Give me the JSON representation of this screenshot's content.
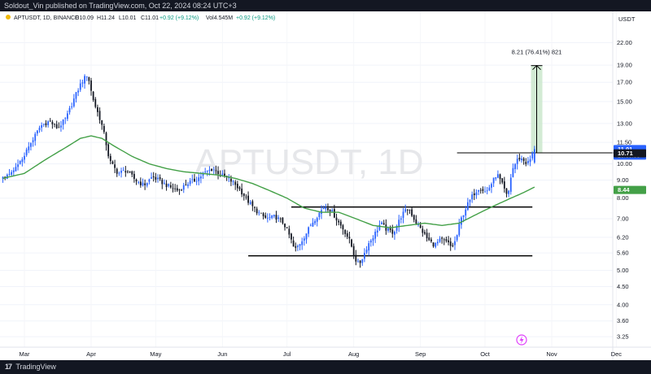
{
  "header": {
    "publisher": "Soldout_Vin published on TradingView.com, Oct 22, 2024 08:24 UTC+3"
  },
  "footer": {
    "brand": "TradingView"
  },
  "legend": {
    "symbol": "APTUSDT, 1D, BINANCE",
    "open": "O10.09",
    "high": "H11.24",
    "low": "L10.01",
    "close": "C11.01",
    "change": "+0.92 (+9.12%)",
    "volume": "Vol4.545M",
    "vol_change": "+0.92 (+9.12%)"
  },
  "watermark": "APTUSDT, 1D",
  "currency": "USDT",
  "measure_label": "8.21 (76.41%) 821",
  "colors": {
    "up": "#2962ff",
    "down": "#131722",
    "ma": "#43a047",
    "price_tag": "#2962ff",
    "dark_tag": "#131722",
    "ma_tag": "#43a047",
    "measure_fill": "#c8e6c9"
  },
  "chart_data": {
    "type": "candlestick",
    "title": "APTUSDT, 1D, BINANCE",
    "scale": "log",
    "ylim": [
      3.1,
      24
    ],
    "y_ticks": [
      22.0,
      19.0,
      17.0,
      15.0,
      13.0,
      11.5,
      10.0,
      9.0,
      8.0,
      7.0,
      6.2,
      5.6,
      5.0,
      4.5,
      4.0,
      3.6,
      3.25
    ],
    "y_tick_labels": [
      "22.00",
      "19.00",
      "17.00",
      "15.00",
      "13.00",
      "11.50",
      "10.00",
      "9.00",
      "8.00",
      "7.00",
      "6.20",
      "5.60",
      "5.00",
      "4.50",
      "4.00",
      "3.60",
      "3.25"
    ],
    "x_ticks": [
      {
        "label": "Mar",
        "day": 0
      },
      {
        "label": "Apr",
        "day": 31
      },
      {
        "label": "May",
        "day": 61
      },
      {
        "label": "Jun",
        "day": 92
      },
      {
        "label": "Jul",
        "day": 122
      },
      {
        "label": "Aug",
        "day": 153
      },
      {
        "label": "Sep",
        "day": 184
      },
      {
        "label": "Oct",
        "day": 214
      },
      {
        "label": "Nov",
        "day": 245
      },
      {
        "label": "Dec",
        "day": 275
      }
    ],
    "price_path": [
      [
        -10,
        9.1
      ],
      [
        -6,
        9.3
      ],
      [
        -3,
        9.8
      ],
      [
        0,
        10.5
      ],
      [
        4,
        11.6
      ],
      [
        8,
        12.8
      ],
      [
        12,
        13.2
      ],
      [
        16,
        12.6
      ],
      [
        20,
        13.5
      ],
      [
        24,
        15.5
      ],
      [
        27,
        17.0
      ],
      [
        30,
        18.0
      ],
      [
        31,
        16.5
      ],
      [
        33,
        14.8
      ],
      [
        36,
        13.2
      ],
      [
        38,
        11.8
      ],
      [
        40,
        10.2
      ],
      [
        42,
        9.8
      ],
      [
        44,
        9.4
      ],
      [
        48,
        9.6
      ],
      [
        52,
        9.0
      ],
      [
        56,
        8.7
      ],
      [
        60,
        9.2
      ],
      [
        64,
        8.9
      ],
      [
        68,
        8.6
      ],
      [
        72,
        8.4
      ],
      [
        76,
        8.8
      ],
      [
        80,
        9.0
      ],
      [
        84,
        9.4
      ],
      [
        88,
        9.7
      ],
      [
        92,
        9.3
      ],
      [
        95,
        9.1
      ],
      [
        98,
        8.8
      ],
      [
        101,
        8.4
      ],
      [
        104,
        7.9
      ],
      [
        107,
        7.5
      ],
      [
        110,
        7.2
      ],
      [
        113,
        7.0
      ],
      [
        117,
        7.1
      ],
      [
        121,
        6.8
      ],
      [
        124,
        6.2
      ],
      [
        126,
        5.7
      ],
      [
        128,
        5.9
      ],
      [
        131,
        6.3
      ],
      [
        134,
        6.8
      ],
      [
        137,
        7.2
      ],
      [
        140,
        7.6
      ],
      [
        143,
        7.4
      ],
      [
        146,
        6.9
      ],
      [
        149,
        6.5
      ],
      [
        152,
        6.0
      ],
      [
        154,
        5.4
      ],
      [
        156,
        5.2
      ],
      [
        158,
        5.5
      ],
      [
        160,
        5.9
      ],
      [
        163,
        6.3
      ],
      [
        166,
        6.8
      ],
      [
        169,
        6.5
      ],
      [
        172,
        6.4
      ],
      [
        176,
        7.2
      ],
      [
        179,
        7.5
      ],
      [
        182,
        6.9
      ],
      [
        185,
        6.5
      ],
      [
        188,
        6.1
      ],
      [
        191,
        5.9
      ],
      [
        194,
        6.1
      ],
      [
        197,
        6.0
      ],
      [
        199,
        5.8
      ],
      [
        201,
        6.1
      ],
      [
        203,
        6.9
      ],
      [
        206,
        7.6
      ],
      [
        209,
        8.2
      ],
      [
        212,
        8.6
      ],
      [
        215,
        8.3
      ],
      [
        218,
        8.9
      ],
      [
        220,
        9.4
      ],
      [
        223,
        8.6
      ],
      [
        225,
        8.0
      ],
      [
        227,
        9.6
      ],
      [
        230,
        10.4
      ],
      [
        232,
        10.3
      ],
      [
        234,
        10.0
      ],
      [
        236,
        10.4
      ],
      [
        237,
        11.01
      ]
    ],
    "last_price": 11.01,
    "countdown": "18:35:06",
    "extra_tag": 10.71,
    "ma_value": 8.44,
    "ma_path": [
      [
        -10,
        9.1
      ],
      [
        0,
        9.4
      ],
      [
        10,
        10.3
      ],
      [
        20,
        11.2
      ],
      [
        26,
        11.8
      ],
      [
        31,
        12.0
      ],
      [
        36,
        11.8
      ],
      [
        42,
        11.2
      ],
      [
        50,
        10.5
      ],
      [
        58,
        10.0
      ],
      [
        66,
        9.7
      ],
      [
        74,
        9.5
      ],
      [
        82,
        9.4
      ],
      [
        90,
        9.3
      ],
      [
        98,
        9.1
      ],
      [
        106,
        8.8
      ],
      [
        114,
        8.4
      ],
      [
        122,
        8.0
      ],
      [
        130,
        7.5
      ],
      [
        138,
        7.3
      ],
      [
        146,
        7.3
      ],
      [
        154,
        7.0
      ],
      [
        162,
        6.7
      ],
      [
        170,
        6.6
      ],
      [
        178,
        6.7
      ],
      [
        186,
        6.8
      ],
      [
        194,
        6.7
      ],
      [
        202,
        6.8
      ],
      [
        210,
        7.2
      ],
      [
        218,
        7.6
      ],
      [
        226,
        8.0
      ],
      [
        232,
        8.3
      ],
      [
        237,
        8.6
      ]
    ],
    "levels": [
      {
        "from": 124,
        "to": 236,
        "value": 7.55
      },
      {
        "from": 104,
        "to": 236,
        "value": 5.5
      },
      {
        "from": 201,
        "to": 280,
        "value": 10.74
      }
    ],
    "measure": {
      "day": 238,
      "from": 10.74,
      "to": 18.95,
      "label": "8.21 (76.41%) 821"
    }
  }
}
